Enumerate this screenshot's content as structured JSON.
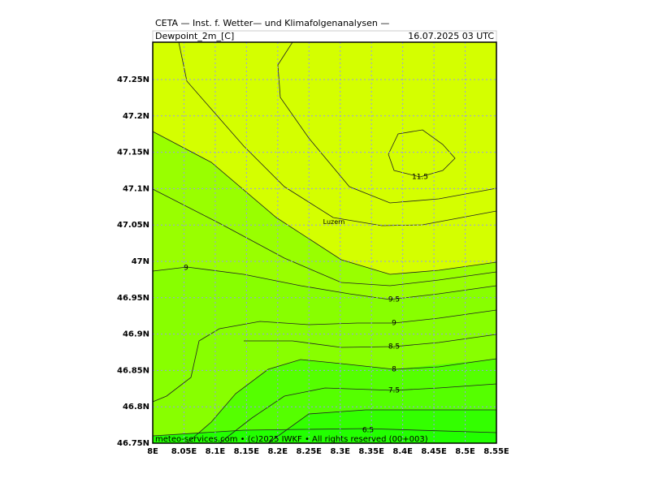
{
  "header": {
    "title": "CETA — Inst. f. Wetter— und Klimafolgenanalysen —",
    "field": "Dewpoint_2m_[C]",
    "time": "16.07.2025 03 UTC"
  },
  "x_axis": {
    "labels": [
      "8E",
      "8.05E",
      "8.1E",
      "8.15E",
      "8.2E",
      "8.25E",
      "8.3E",
      "8.35E",
      "8.4E",
      "8.45E",
      "8.5E",
      "8.55E"
    ]
  },
  "y_axis": {
    "labels": [
      "47.25N",
      "47.2N",
      "47.15N",
      "47.1N",
      "47.05N",
      "47N",
      "46.95N",
      "46.9N",
      "46.85N",
      "46.8N",
      "46.75N"
    ]
  },
  "contour_labels": [
    "11.5",
    "9",
    "9.5",
    "9",
    "8.5",
    "8",
    "7.5",
    "6.5"
  ],
  "place": "Luzern",
  "footer": "meteo-services.com • (c)2025 IWKF • All rights reserved (00+003)"
}
